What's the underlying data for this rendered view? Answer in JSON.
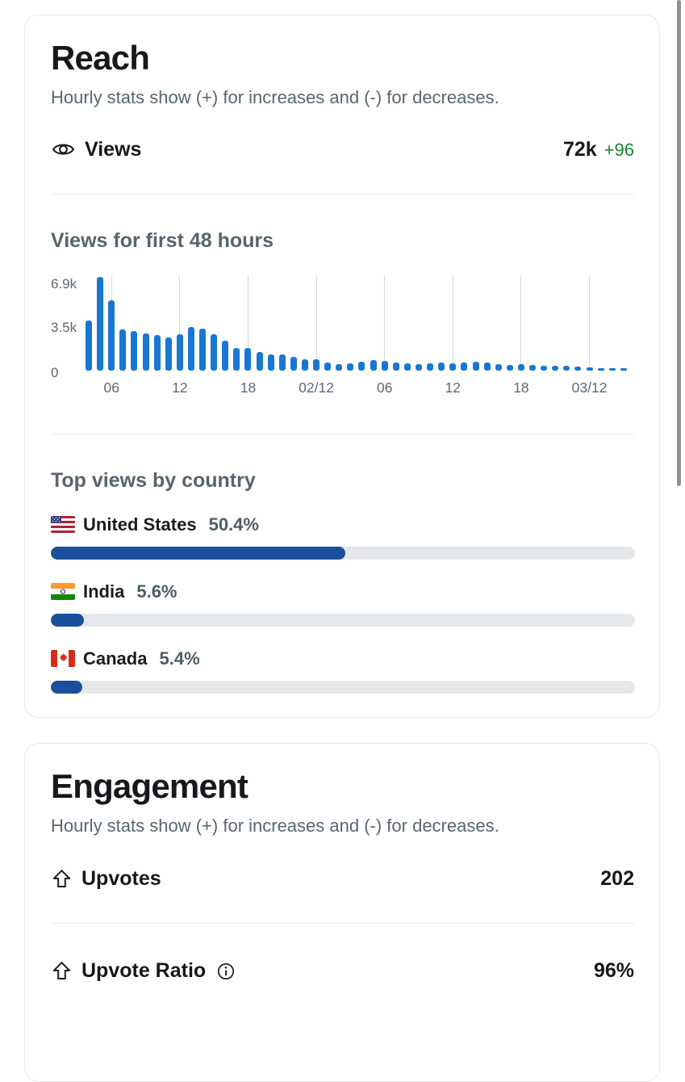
{
  "colors": {
    "chart_bar_blue": "#1877d3",
    "progress_fill_blue": "#1a4f9c",
    "progress_track_gray": "#e5e8eb",
    "delta_green": "#15862d",
    "gridline_gray": "#d9dadb"
  },
  "reach": {
    "title": "Reach",
    "subtitle": "Hourly stats show (+) for increases and (-) for decreases.",
    "views_row": {
      "label": "Views",
      "value": "72k",
      "delta": "+96"
    },
    "chart_title": "Views for first 48 hours",
    "countries_title": "Top views by country",
    "countries": [
      {
        "name": "United States",
        "pct_label": "50.4%",
        "pct": 50.4,
        "flag": "united-states"
      },
      {
        "name": "India",
        "pct_label": "5.6%",
        "pct": 5.6,
        "flag": "india"
      },
      {
        "name": "Canada",
        "pct_label": "5.4%",
        "pct": 5.4,
        "flag": "canada"
      }
    ]
  },
  "engagement": {
    "title": "Engagement",
    "subtitle": "Hourly stats show (+) for increases and (-) for decreases.",
    "upvotes_row": {
      "label": "Upvotes",
      "value": "202"
    },
    "ratio_row": {
      "label": "Upvote Ratio",
      "value": "96%"
    }
  },
  "chart_data": {
    "type": "bar",
    "title": "Views for first 48 hours",
    "ylabel": "views",
    "xlabel": "hour",
    "ylim": [
      0,
      7420
    ],
    "grid": "vertical",
    "values": [
      3900,
      7300,
      5500,
      3200,
      3100,
      2900,
      2750,
      2600,
      2850,
      3400,
      3300,
      2850,
      2350,
      1750,
      1750,
      1450,
      1250,
      1250,
      1050,
      900,
      850,
      600,
      500,
      550,
      700,
      800,
      750,
      650,
      550,
      500,
      550,
      600,
      550,
      650,
      700,
      600,
      500,
      450,
      500,
      450,
      400,
      400,
      350,
      300,
      250,
      150,
      100,
      100
    ],
    "y_ticks": [
      {
        "label": "0",
        "value": 0
      },
      {
        "label": "3.5k",
        "value": 3500
      },
      {
        "label": "6.9k",
        "value": 6900
      }
    ],
    "x_ticks": [
      {
        "label": "06",
        "bar_index": 2
      },
      {
        "label": "12",
        "bar_index": 8
      },
      {
        "label": "18",
        "bar_index": 14
      },
      {
        "label": "02/12",
        "bar_index": 20
      },
      {
        "label": "06",
        "bar_index": 26
      },
      {
        "label": "12",
        "bar_index": 32
      },
      {
        "label": "18",
        "bar_index": 38
      },
      {
        "label": "03/12",
        "bar_index": 44
      }
    ]
  }
}
